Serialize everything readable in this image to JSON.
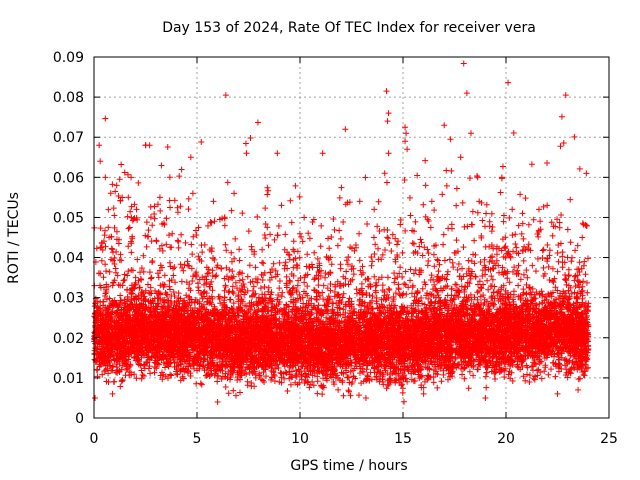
{
  "chart_data": {
    "type": "scatter",
    "title": "Day 153 of 2024, Rate Of TEC Index for receiver vera",
    "xlabel": "GPS time / hours",
    "ylabel": "ROTI / TECUs",
    "xlim": [
      0,
      25
    ],
    "ylim": [
      0,
      0.09
    ],
    "xticks": [
      0,
      5,
      10,
      15,
      20,
      25
    ],
    "yticks": [
      0,
      0.01,
      0.02,
      0.03,
      0.04,
      0.05,
      0.06,
      0.07,
      0.08,
      0.09
    ],
    "xtick_labels": [
      "0",
      "5",
      "10",
      "15",
      "20",
      "25"
    ],
    "ytick_labels": [
      "0",
      "0.01",
      "0.02",
      "0.03",
      "0.04",
      "0.05",
      "0.06",
      "0.07",
      "0.08",
      "0.09"
    ],
    "grid": true,
    "marker": "+",
    "color": "#ff0000",
    "series": [
      {
        "name": "ROTI",
        "points": [
          [
            0.25,
            0.068
          ],
          [
            0.3,
            0.064
          ],
          [
            0.55,
            0.06
          ],
          [
            2.5,
            0.068
          ],
          [
            2.7,
            0.068
          ],
          [
            4.7,
            0.065
          ],
          [
            6.4,
            0.0805
          ],
          [
            7.4,
            0.066
          ],
          [
            8.9,
            0.066
          ],
          [
            11.1,
            0.066
          ],
          [
            12.2,
            0.072
          ],
          [
            14.2,
            0.0815
          ],
          [
            14.3,
            0.076
          ],
          [
            14.25,
            0.074
          ],
          [
            14.3,
            0.066
          ],
          [
            15.1,
            0.0725
          ],
          [
            15.15,
            0.071
          ],
          [
            15.1,
            0.069
          ],
          [
            15.2,
            0.067
          ],
          [
            17.0,
            0.073
          ],
          [
            17.3,
            0.0695
          ],
          [
            18.1,
            0.081
          ],
          [
            18.3,
            0.071
          ],
          [
            17.8,
            0.065
          ],
          [
            19.8,
            0.06
          ],
          [
            22.9,
            0.0805
          ],
          [
            23.9,
            0.061
          ],
          [
            22.0,
            0.053
          ],
          [
            21.6,
            0.052
          ],
          [
            6.8,
            0.056
          ],
          [
            4.8,
            0.056
          ],
          [
            5.8,
            0.054
          ],
          [
            9.1,
            0.053
          ],
          [
            10.2,
            0.05
          ],
          [
            12.9,
            0.054
          ],
          [
            13.6,
            0.052
          ],
          [
            16.1,
            0.058
          ],
          [
            16.4,
            0.054
          ],
          [
            18.7,
            0.054
          ],
          [
            20.3,
            0.052
          ],
          [
            20.8,
            0.051
          ],
          [
            23.0,
            0.047
          ],
          [
            23.7,
            0.045
          ],
          [
            1.1,
            0.058
          ],
          [
            1.8,
            0.06
          ],
          [
            3.2,
            0.055
          ],
          [
            0.05,
            0.005
          ],
          [
            0.9,
            0.006
          ],
          [
            6.0,
            0.004
          ],
          [
            13.2,
            0.005
          ],
          [
            16.0,
            0.006
          ],
          [
            19.0,
            0.005
          ],
          [
            22.5,
            0.006
          ],
          [
            23.5,
            0.007
          ]
        ]
      }
    ],
    "distribution": {
      "n": 11000,
      "x_range": [
        0,
        24
      ],
      "core_band": [
        0.01,
        0.03
      ],
      "median_by_hour": [
        0.02,
        0.02,
        0.021,
        0.021,
        0.02,
        0.02,
        0.019,
        0.018,
        0.019,
        0.019,
        0.018,
        0.018,
        0.018,
        0.019,
        0.019,
        0.018,
        0.019,
        0.02,
        0.02,
        0.02,
        0.021,
        0.021,
        0.021,
        0.021,
        0.02
      ],
      "upper_by_hour": [
        0.045,
        0.05,
        0.05,
        0.048,
        0.047,
        0.046,
        0.043,
        0.04,
        0.042,
        0.044,
        0.04,
        0.04,
        0.043,
        0.043,
        0.044,
        0.042,
        0.045,
        0.047,
        0.048,
        0.046,
        0.048,
        0.05,
        0.05,
        0.048,
        0.045
      ],
      "floor": 0.004
    }
  }
}
